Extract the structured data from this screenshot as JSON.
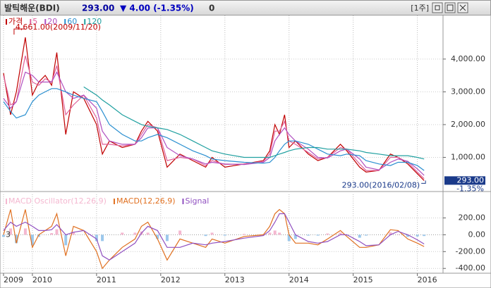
{
  "header": {
    "title": "발틱해운(BDI)",
    "price": "293.00",
    "change": "▼ 4.00 (-1.35%)",
    "volume": "0",
    "period": "[1주]"
  },
  "chart_data": [
    {
      "type": "line",
      "x": [
        2009.55,
        2009.66,
        2009.75,
        2009.89,
        2010.0,
        2010.1,
        2010.2,
        2010.3,
        2010.38,
        2010.52,
        2010.64,
        2010.8,
        2011.0,
        2011.09,
        2011.2,
        2011.4,
        2011.6,
        2011.7,
        2011.8,
        2011.95,
        2012.1,
        2012.3,
        2012.5,
        2012.7,
        2012.8,
        2013.0,
        2013.3,
        2013.6,
        2013.7,
        2013.78,
        2013.85,
        2013.93,
        2014.0,
        2014.1,
        2014.3,
        2014.45,
        2014.6,
        2014.8,
        2014.9,
        2015.1,
        2015.2,
        2015.4,
        2015.58,
        2015.7,
        2015.85,
        2016.0,
        2016.105
      ],
      "series": [
        {
          "name": "가격",
          "color": "#c00000",
          "values": [
            3570,
            2300,
            3000,
            4661,
            2900,
            3300,
            3500,
            3200,
            4200,
            1700,
            3000,
            2800,
            2000,
            1100,
            1500,
            1300,
            1400,
            1800,
            2100,
            1800,
            700,
            1100,
            900,
            700,
            1000,
            700,
            800,
            900,
            1200,
            2000,
            1700,
            2300,
            1300,
            1500,
            1100,
            900,
            1000,
            1400,
            1200,
            700,
            550,
            600,
            1100,
            1000,
            800,
            500,
            293
          ]
        },
        {
          "name": "5",
          "color": "#e0609a",
          "values": [
            3500,
            2600,
            2700,
            4100,
            3300,
            3200,
            3400,
            3300,
            3800,
            2300,
            2600,
            2900,
            2200,
            1400,
            1400,
            1350,
            1400,
            1700,
            2000,
            1900,
            900,
            1000,
            950,
            750,
            900,
            780,
            800,
            880,
            1100,
            1800,
            1800,
            2100,
            1500,
            1400,
            1150,
            950,
            1000,
            1300,
            1250,
            800,
            600,
            600,
            1000,
            1000,
            850,
            550,
            350
          ]
        },
        {
          "name": "20",
          "color": "#b050c0",
          "values": [
            2800,
            2500,
            2700,
            3600,
            3500,
            3300,
            3300,
            3300,
            3600,
            3000,
            2800,
            2900,
            2500,
            1800,
            1500,
            1400,
            1400,
            1600,
            1900,
            1900,
            1300,
            1050,
            950,
            800,
            850,
            800,
            780,
            850,
            1000,
            1500,
            1700,
            1900,
            1700,
            1500,
            1250,
            1000,
            980,
            1200,
            1250,
            950,
            700,
            620,
            850,
            950,
            880,
            650,
            450
          ]
        },
        {
          "name": "60",
          "color": "#2a8fd0",
          "values": [
            2700,
            2400,
            2200,
            2300,
            2700,
            2900,
            3000,
            3100,
            3100,
            3000,
            2900,
            2800,
            2700,
            2400,
            2000,
            1700,
            1500,
            1500,
            1600,
            1700,
            1600,
            1400,
            1200,
            1050,
            950,
            900,
            850,
            820,
            850,
            1000,
            1200,
            1400,
            1500,
            1500,
            1400,
            1250,
            1100,
            1050,
            1100,
            1050,
            900,
            800,
            750,
            850,
            850,
            750,
            600
          ]
        },
        {
          "name": "120",
          "color": "#20a0a0",
          "values": [
            null,
            null,
            null,
            null,
            null,
            null,
            null,
            null,
            null,
            null,
            null,
            3150,
            2900,
            2750,
            2600,
            2300,
            2100,
            2000,
            1950,
            1900,
            1850,
            1700,
            1500,
            1300,
            1200,
            1100,
            1000,
            1000,
            1000,
            1050,
            1100,
            1150,
            1200,
            1250,
            1300,
            1300,
            1250,
            1250,
            1250,
            1200,
            1150,
            1100,
            1050,
            1050,
            1050,
            1000,
            950
          ]
        }
      ],
      "xlim": [
        2009.55,
        2016.4
      ],
      "ylim": [
        0,
        5330
      ],
      "yticks": [
        {
          "value": 1000,
          "label": "1,000.00"
        },
        {
          "value": 2000,
          "label": "2,000.00"
        },
        {
          "value": 3000,
          "label": "3,000.00"
        },
        {
          "value": 4000,
          "label": "4,000.00"
        }
      ],
      "grid": true,
      "annotations": [
        "4,661.00(2009/11/20)",
        "293.00(2016/02/08)"
      ],
      "last_price_label": "293.00",
      "last_change_label": "-1.35%"
    },
    {
      "type": "line",
      "x": [
        2009.55,
        2009.66,
        2009.75,
        2009.89,
        2010.0,
        2010.1,
        2010.2,
        2010.3,
        2010.38,
        2010.52,
        2010.64,
        2010.8,
        2011.0,
        2011.09,
        2011.2,
        2011.4,
        2011.6,
        2011.7,
        2011.8,
        2011.95,
        2012.1,
        2012.3,
        2012.5,
        2012.7,
        2012.8,
        2013.0,
        2013.3,
        2013.6,
        2013.7,
        2013.78,
        2013.85,
        2013.93,
        2014.0,
        2014.1,
        2014.3,
        2014.45,
        2014.6,
        2014.8,
        2014.9,
        2015.1,
        2015.2,
        2015.4,
        2015.58,
        2015.7,
        2015.85,
        2016.0,
        2016.105
      ],
      "series": [
        {
          "name": "MACD Oscillator(12,26,9)",
          "kind": "bar",
          "color": "#f4b8d0",
          "negative_color": "#9cc8ec",
          "values": [
            -25,
            75,
            -100,
            75,
            -125,
            -25,
            0,
            20,
            65,
            -125,
            35,
            0,
            -75,
            -75,
            0,
            25,
            25,
            40,
            25,
            -50,
            -75,
            50,
            0,
            -15,
            25,
            -10,
            10,
            5,
            25,
            50,
            25,
            0,
            -75,
            -50,
            -10,
            -10,
            15,
            25,
            -10,
            -35,
            -10,
            0,
            30,
            5,
            -25,
            -20,
            -15
          ]
        },
        {
          "name": "MACD(12,26,9)",
          "kind": "line",
          "color": "#e07020",
          "values": [
            0,
            300,
            -100,
            300,
            -150,
            0,
            50,
            100,
            250,
            -250,
            100,
            50,
            -200,
            -400,
            -300,
            -150,
            -50,
            100,
            150,
            -50,
            -300,
            -50,
            -100,
            -150,
            -50,
            -100,
            -20,
            0,
            100,
            250,
            300,
            250,
            0,
            -100,
            -100,
            -120,
            -50,
            50,
            -20,
            -150,
            -150,
            -120,
            60,
            50,
            -50,
            -100,
            -140
          ]
        },
        {
          "name": "Signal",
          "kind": "line",
          "color": "#9050c0",
          "values": [
            50,
            150,
            100,
            150,
            100,
            50,
            50,
            60,
            120,
            0,
            30,
            50,
            -50,
            -250,
            -300,
            -200,
            -100,
            20,
            100,
            50,
            -150,
            -150,
            -100,
            -120,
            -100,
            -80,
            -40,
            -10,
            50,
            150,
            250,
            250,
            150,
            0,
            -80,
            -100,
            -80,
            0,
            0,
            -80,
            -130,
            -120,
            0,
            40,
            0,
            -60,
            -110
          ]
        }
      ],
      "xlim": [
        2009.55,
        2016.4
      ],
      "ylim": [
        -440,
        480
      ],
      "yticks": [
        {
          "value": -400,
          "label": "-400.00"
        },
        {
          "value": -200,
          "label": "-200.00"
        },
        {
          "value": 0,
          "label": "0.00"
        },
        {
          "value": 200,
          "label": "200.00"
        }
      ],
      "xticks": [
        {
          "value": 2009.55,
          "label": "2009"
        },
        2010,
        2011,
        2012,
        2013,
        2014,
        2015,
        2016
      ],
      "grid": true,
      "marker": "3"
    }
  ]
}
